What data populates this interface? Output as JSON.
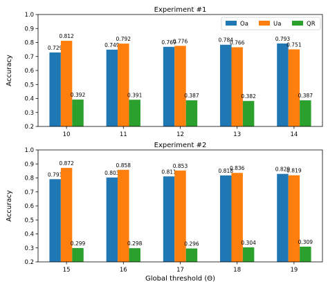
{
  "colors": {
    "Oa": "#1f77b4",
    "Ua": "#ff7f0e",
    "QR": "#2ca02c"
  },
  "shared_xlabel": "Global threshold (Θ)",
  "chart_data": [
    {
      "type": "bar",
      "title": "Experiment #1",
      "xlabel": "",
      "ylabel": "Accuracy",
      "ylim": [
        0.2,
        1.0
      ],
      "yticks": [
        "0.2",
        "0.3",
        "0.4",
        "0.5",
        "0.6",
        "0.7",
        "0.8",
        "0.9",
        "1.0"
      ],
      "categories": [
        "10",
        "11",
        "12",
        "13",
        "14"
      ],
      "legend": "top-right",
      "series": [
        {
          "name": "Oa",
          "values": [
            0.729,
            0.749,
            0.769,
            0.784,
            0.793
          ],
          "labels": [
            "0.729",
            "0.749",
            "0.769",
            "0.784",
            "0.793"
          ]
        },
        {
          "name": "Ua",
          "values": [
            0.812,
            0.792,
            0.776,
            0.766,
            0.751
          ],
          "labels": [
            "0.812",
            "0.792",
            "0.776",
            "0.766",
            "0.751"
          ]
        },
        {
          "name": "QR",
          "values": [
            0.392,
            0.391,
            0.387,
            0.382,
            0.387
          ],
          "labels": [
            "0.392",
            "0.391",
            "0.387",
            "0.382",
            "0.387"
          ]
        }
      ]
    },
    {
      "type": "bar",
      "title": "Experiment #2",
      "xlabel": "Global threshold (Θ)",
      "ylabel": "Accuracy",
      "ylim": [
        0.2,
        1.0
      ],
      "yticks": [
        "0.2",
        "0.3",
        "0.4",
        "0.5",
        "0.6",
        "0.7",
        "0.8",
        "0.9",
        "1.0"
      ],
      "categories": [
        "15",
        "16",
        "17",
        "18",
        "19"
      ],
      "series": [
        {
          "name": "Oa",
          "values": [
            0.791,
            0.803,
            0.811,
            0.818,
            0.829
          ],
          "labels": [
            "0.791",
            "0.803",
            "0.811",
            "0.818",
            "0.829"
          ]
        },
        {
          "name": "Ua",
          "values": [
            0.872,
            0.858,
            0.853,
            0.836,
            0.819
          ],
          "labels": [
            "0.872",
            "0.858",
            "0.853",
            "0.836",
            "0.819"
          ]
        },
        {
          "name": "QR",
          "values": [
            0.299,
            0.298,
            0.296,
            0.304,
            0.309
          ],
          "labels": [
            "0.299",
            "0.298",
            "0.296",
            "0.304",
            "0.309"
          ]
        }
      ]
    }
  ]
}
